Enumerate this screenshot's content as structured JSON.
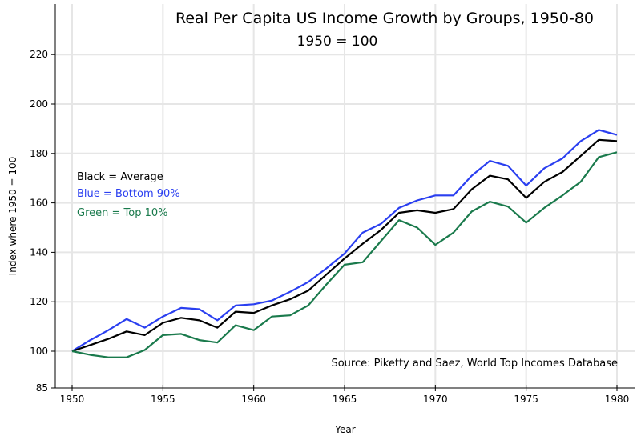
{
  "chart_data": {
    "type": "line",
    "title": "Real Per Capita US Income Growth by Groups, 1950-80",
    "subtitle": "1950 = 100",
    "xlabel": "Year",
    "ylabel": "Index where 1950 = 100",
    "xlim": [
      1950,
      1980
    ],
    "ylim": [
      85,
      235
    ],
    "grid": true,
    "x_ticks": [
      1950,
      1955,
      1960,
      1965,
      1970,
      1975,
      1980
    ],
    "x_tick_labels": [
      "1950",
      "1955",
      "1960",
      "1965",
      "1970",
      "1975",
      "1980"
    ],
    "y_ticks": [
      85,
      100,
      120,
      140,
      160,
      180,
      200,
      220
    ],
    "y_tick_labels": [
      "85",
      "100",
      "120",
      "140",
      "160",
      "180",
      "200",
      "220"
    ],
    "x": [
      1950,
      1951,
      1952,
      1953,
      1954,
      1955,
      1956,
      1957,
      1958,
      1959,
      1960,
      1961,
      1962,
      1963,
      1964,
      1965,
      1966,
      1967,
      1968,
      1969,
      1970,
      1971,
      1972,
      1973,
      1974,
      1975,
      1976,
      1977,
      1978,
      1979,
      1980
    ],
    "series": [
      {
        "name": "Bottom 90%",
        "color": "#2a3ff0",
        "values": [
          100,
          104.5,
          108.5,
          113,
          109.5,
          114,
          117.5,
          117,
          112.5,
          118.5,
          119,
          120.5,
          124,
          128,
          133.5,
          139.5,
          148,
          151.5,
          158,
          161,
          163,
          163,
          171,
          177,
          175,
          167,
          174,
          178,
          185,
          189.5,
          187.5
        ]
      },
      {
        "name": "Average",
        "color": "#000000",
        "values": [
          100,
          102.5,
          105,
          108,
          106.5,
          111.5,
          113.5,
          112.5,
          109.5,
          116,
          115.5,
          118.5,
          121,
          124.5,
          131,
          137.5,
          143.5,
          149,
          156,
          157,
          156,
          157.5,
          165.5,
          171,
          169.5,
          162,
          168.5,
          172.5,
          179,
          185.5,
          185
        ]
      },
      {
        "name": "Top 10%",
        "color": "#1a7a4c",
        "values": [
          100,
          98.5,
          97.5,
          97.5,
          100.5,
          106.5,
          107,
          104.5,
          103.5,
          110.5,
          108.5,
          114,
          114.5,
          118.5,
          127,
          135,
          136,
          144.5,
          153,
          150,
          143,
          148,
          156.5,
          160.5,
          158.5,
          152,
          158,
          163,
          168.5,
          178.5,
          180.5
        ]
      }
    ],
    "legend": {
      "placement": "left",
      "entries": [
        {
          "text": "Black = Average",
          "color": "#000000"
        },
        {
          "text": "Blue = Bottom 90%",
          "color": "#2a3ff0"
        },
        {
          "text": "Green = Top 10%",
          "color": "#1a7a4c"
        }
      ]
    },
    "annotations": [
      {
        "text": "Source:  Piketty and Saez, World Top Incomes Database",
        "placement": "bottom-right"
      }
    ]
  }
}
